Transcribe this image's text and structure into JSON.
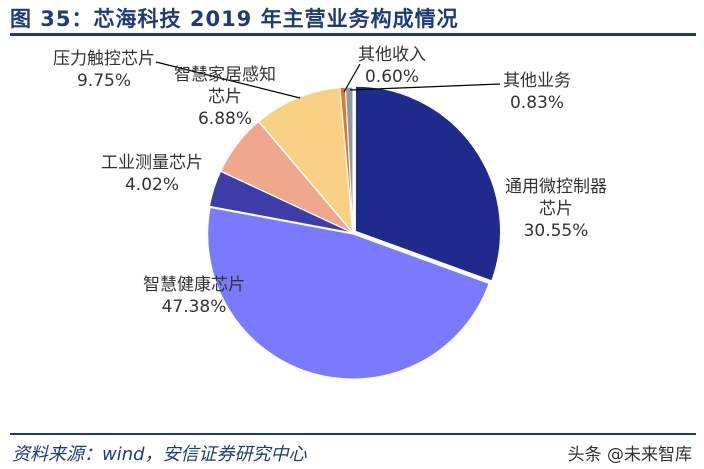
{
  "title": "图 35：芯海科技 2019 年主营业务构成情况",
  "source": "资料来源：wind，安信证券研究中心",
  "watermark": "头条 @未来智库",
  "chart_data": {
    "type": "pie",
    "title": "",
    "slices": [
      {
        "name": "通用微控制器芯片",
        "value": 30.55,
        "label": "30.55%",
        "color": "#1E2A8C"
      },
      {
        "name": "智慧健康芯片",
        "value": 47.38,
        "label": "47.38%",
        "color": "#7A7AFF"
      },
      {
        "name": "工业测量芯片",
        "value": 4.02,
        "label": "4.02%",
        "color": "#3D3DAA"
      },
      {
        "name": "智慧家居感知芯片",
        "value": 6.88,
        "label": "6.88%",
        "color": "#EFA88C"
      },
      {
        "name": "压力触控芯片",
        "value": 9.75,
        "label": "9.75%",
        "color": "#FAD085"
      },
      {
        "name": "其他收入",
        "value": 0.6,
        "label": "0.60%",
        "color": "#E07A2A"
      },
      {
        "name": "其他业务",
        "value": 0.83,
        "label": "0.83%",
        "color": "#8C9BAA"
      }
    ]
  }
}
